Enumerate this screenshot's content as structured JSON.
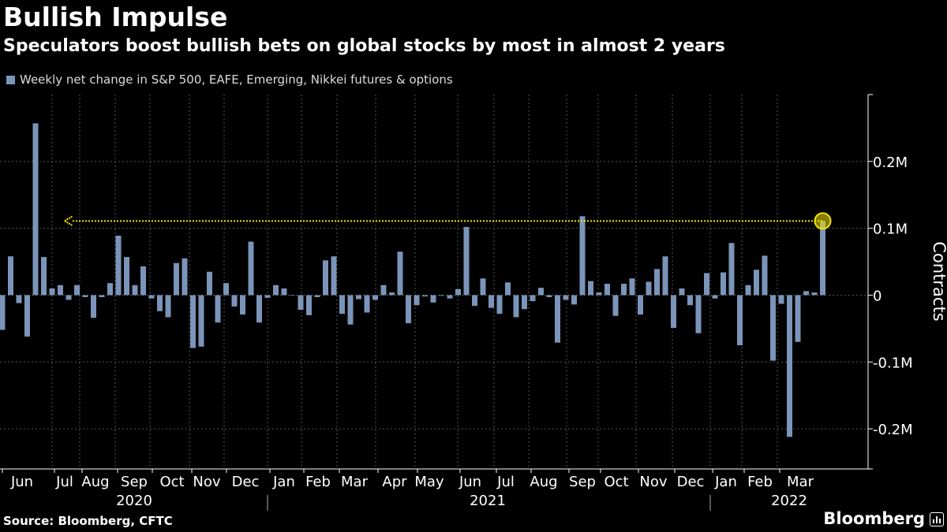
{
  "title": "Bullish Impulse",
  "subtitle": "Speculators boost bullish bets on global stocks by most in almost 2 years",
  "legend": {
    "label": "Weekly net change in S&P 500, EAFE, Emerging, Nikkei futures & options",
    "color": "#7b94b9"
  },
  "source": "Source: Bloomberg, CFTC",
  "brand": "Bloomberg",
  "colors": {
    "bar": "#7b94b9",
    "grid": "#555555",
    "axis": "#ffffff",
    "highlight": "#f2e200"
  },
  "chart_data": {
    "type": "bar",
    "title": "Bullish Impulse",
    "xlabel": "",
    "ylabel": "Contracts",
    "ylim": [
      -0.26,
      0.3
    ],
    "yticks": [
      0.2,
      0.1,
      0,
      -0.1,
      -0.2
    ],
    "ytick_labels": [
      "0.2M",
      "0.1M",
      "0",
      "-0.1M",
      "-0.2M"
    ],
    "units": "millions of contracts",
    "grid": true,
    "x_month_labels": [
      "Jun",
      "Jul",
      "Aug",
      "Sep",
      "Oct",
      "Nov",
      "Dec",
      "Jan",
      "Feb",
      "Mar",
      "Apr",
      "May",
      "Jun",
      "Jul",
      "Aug",
      "Sep",
      "Oct",
      "Nov",
      "Dec",
      "Jan",
      "Feb",
      "Mar"
    ],
    "x_year_labels": [
      "2020",
      "2021",
      "2022"
    ],
    "annotation": "Latest weekly change highlighted; dotted line marks the level back to mid-2020",
    "values": [
      -0.052,
      0.058,
      -0.012,
      -0.062,
      0.257,
      0.057,
      0.01,
      0.015,
      -0.007,
      0.015,
      -0.003,
      -0.034,
      -0.003,
      0.018,
      0.089,
      0.057,
      0.015,
      0.043,
      -0.005,
      -0.024,
      -0.033,
      0.048,
      0.055,
      -0.079,
      -0.077,
      0.035,
      -0.041,
      0.018,
      -0.017,
      -0.029,
      0.08,
      -0.041,
      -0.004,
      0.015,
      0.01,
      0.0,
      -0.022,
      -0.03,
      -0.003,
      0.052,
      0.058,
      -0.028,
      -0.044,
      -0.006,
      -0.026,
      -0.007,
      0.015,
      0.004,
      0.065,
      -0.042,
      -0.015,
      -0.002,
      -0.011,
      -0.001,
      -0.005,
      0.009,
      0.102,
      -0.016,
      0.025,
      -0.019,
      -0.028,
      0.019,
      -0.033,
      -0.021,
      -0.009,
      0.011,
      -0.003,
      -0.071,
      -0.007,
      -0.014,
      0.118,
      0.021,
      0.004,
      0.017,
      -0.031,
      0.017,
      0.025,
      -0.029,
      0.02,
      0.039,
      0.058,
      -0.049,
      0.01,
      -0.015,
      -0.057,
      0.033,
      -0.005,
      0.034,
      0.078,
      -0.075,
      0.015,
      0.038,
      0.059,
      -0.098,
      -0.013,
      -0.212,
      -0.07,
      0.006,
      0.004,
      0.111
    ]
  }
}
